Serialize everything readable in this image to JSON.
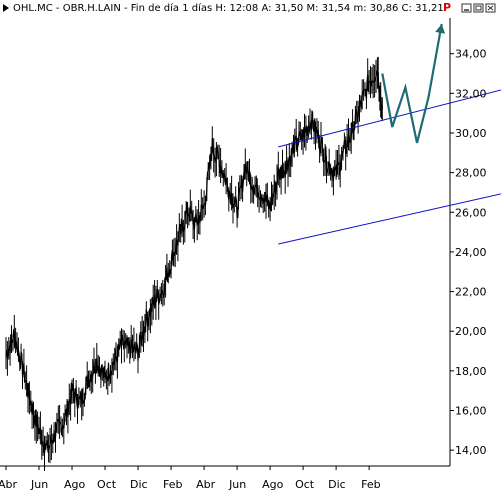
{
  "header": {
    "text": "OHL.MC - OBR.H.LAIN - Fin de día 1 días  H: 12:08  A: 31,50  M: 31,54  m: 30,86  C: 31,21",
    "flag": "P",
    "flag_color": "#e00000"
  },
  "window_controls": {
    "minimize_icon": "minimize-icon",
    "restore_icon": "restore-icon",
    "close_icon": "close-icon"
  },
  "colors": {
    "price": "#000000",
    "channel": "#1010c8",
    "forecast_arrow": "#1f6b73",
    "axis": "#000000"
  },
  "chart_data": {
    "type": "line",
    "title": "OHL.MC - OBR.H.LAIN - Fin de día 1 días",
    "xlabel": "",
    "ylabel": "",
    "ylim": [
      13.2,
      35.8
    ],
    "x_tick_labels": [
      "Abr",
      "Jun",
      "Ago",
      "Oct",
      "Dic",
      "Feb",
      "Abr",
      "Jun",
      "Ago",
      "Oct",
      "Dic",
      "Feb"
    ],
    "y_tick_labels": [
      "14,00",
      "16,00",
      "18,00",
      "20,00",
      "22,00",
      "24,00",
      "26,00",
      "28,00",
      "30,00",
      "32,00",
      "34,00"
    ],
    "y_tick_values": [
      14,
      16,
      18,
      20,
      22,
      24,
      26,
      28,
      30,
      32,
      34
    ],
    "grid": false,
    "series": [
      {
        "style": "daily-bars",
        "x": [
          0,
          0.5,
          1,
          1.5,
          2,
          2.5,
          3,
          3.5,
          4,
          4.5,
          5,
          5.5,
          6,
          6.5,
          7,
          7.5,
          8,
          8.5,
          9,
          9.5,
          10,
          10.5,
          11,
          11.5,
          12,
          12.5,
          13,
          13.5,
          14,
          14.5,
          15,
          15.5,
          16,
          16.5,
          17,
          17.5,
          18,
          18.5,
          19,
          19.5,
          20,
          20.5,
          21,
          21.5,
          22,
          22.5,
          22.8
        ],
        "values": [
          18.9,
          19.8,
          18.2,
          16.4,
          15.0,
          14.0,
          14.9,
          15.4,
          17.0,
          16.4,
          17.6,
          18.5,
          17.7,
          18.4,
          19.3,
          19.1,
          19.0,
          20.6,
          21.5,
          22.1,
          23.5,
          24.8,
          26.1,
          25.4,
          26.3,
          29.3,
          28.4,
          27.2,
          26.1,
          28.3,
          27.4,
          27.0,
          26.2,
          27.9,
          28.4,
          29.3,
          29.9,
          30.7,
          29.6,
          28.5,
          27.9,
          29.1,
          30.1,
          31.4,
          32.6,
          33.2,
          31.2
        ]
      },
      {
        "name": "",
        "style": "channel-upper",
        "x": [
          16.5,
          32.5
        ],
        "values": [
          29.3,
          32.7
        ]
      },
      {
        "name": "",
        "style": "channel-lower",
        "x": [
          16.5,
          32.5
        ],
        "values": [
          24.4,
          27.4
        ]
      },
      {
        "name": "",
        "style": "forecast-zigzag",
        "x": [
          22.8,
          23.4,
          24.2,
          24.9,
          25.6,
          26.4
        ],
        "values": [
          33.0,
          30.3,
          32.3,
          29.5,
          31.8,
          35.5
        ]
      }
    ]
  }
}
